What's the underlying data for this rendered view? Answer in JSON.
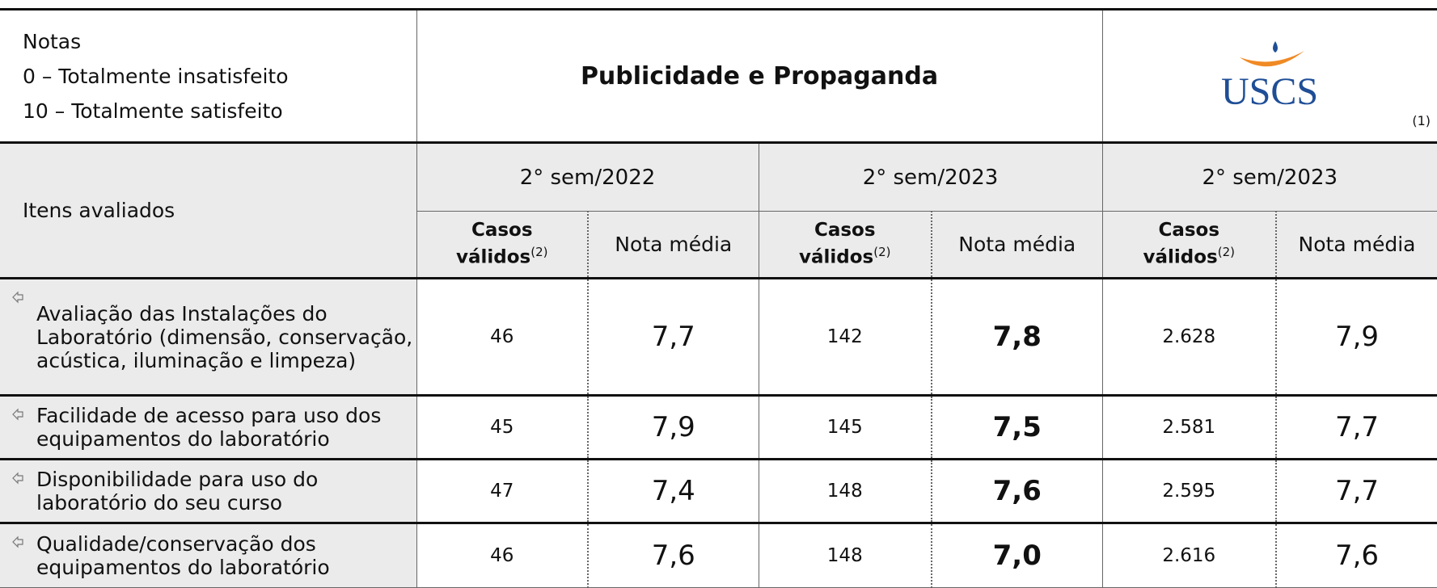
{
  "header": {
    "notes": [
      "Notas",
      "0 – Totalmente insatisfeito",
      "10 – Totalmente satisfeito"
    ],
    "title": "Publicidade e Propaganda",
    "logo": "USCS",
    "logo_note": "(1)"
  },
  "table": {
    "item_header": "Itens avaliados",
    "periods": [
      "2° sem/2022",
      "2° sem/2023",
      "2° sem/2023"
    ],
    "casos_label": [
      "Casos",
      "válidos",
      "(2)"
    ],
    "nota_label": "Nota média",
    "rows": [
      [
        "Avaliação das Instalações do Laboratório (dimensão, conservação, acústica, iluminação e limpeza)",
        "46",
        "7,7",
        "142",
        "7,8",
        "2.628",
        "7,9"
      ],
      [
        "Facilidade de acesso para uso dos equipamentos do laboratório",
        "45",
        "7,9",
        "145",
        "7,5",
        "2.581",
        "7,7"
      ],
      [
        "Disponibilidade para uso do laboratório do seu curso",
        "47",
        "7,4",
        "148",
        "7,6",
        "2.595",
        "7,7"
      ],
      [
        "Qualidade/conservação dos equipamentos do laboratório",
        "46",
        "7,6",
        "148",
        "7,0",
        "2.616",
        "7,6"
      ]
    ]
  }
}
